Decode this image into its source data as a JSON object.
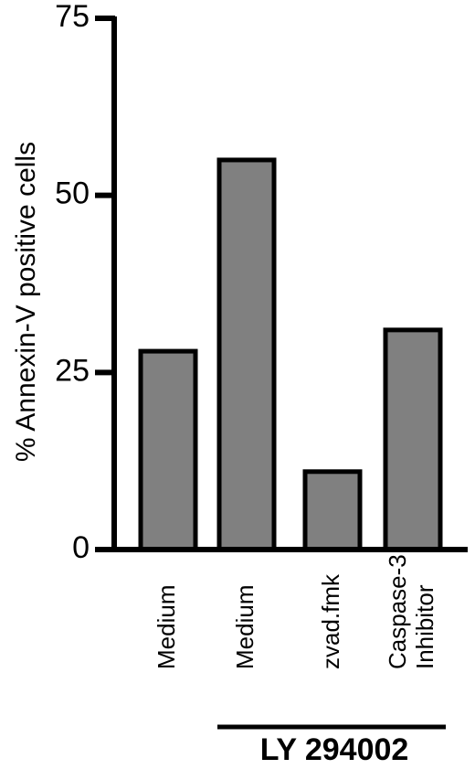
{
  "chart_data": {
    "type": "bar",
    "categories": [
      [
        "Medium"
      ],
      [
        "Medium"
      ],
      [
        "zvad.fmk"
      ],
      [
        "Caspase-3",
        "Inhibitor"
      ]
    ],
    "values": [
      28,
      55,
      11,
      31
    ],
    "ylabel": "% Annexin-V positive cells",
    "ylim": [
      0,
      75
    ],
    "yticks": [
      0,
      25,
      50,
      75
    ],
    "group_label": "LY 294002",
    "group_categories": [
      1,
      2,
      3
    ],
    "grid": false,
    "legend": "none"
  },
  "colors": {
    "bar_fill": "#808080",
    "bar_stroke": "#000000",
    "axis": "#000000",
    "background": "#ffffff"
  }
}
